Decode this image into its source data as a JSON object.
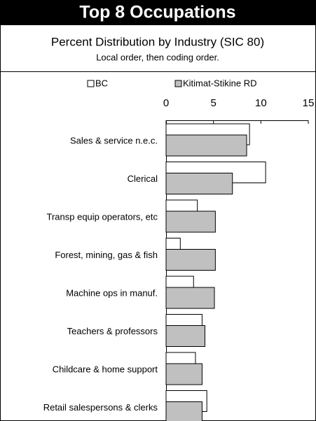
{
  "chart_data": {
    "type": "bar",
    "orientation": "horizontal",
    "title": "Top 8 Occupations",
    "subtitle": "Percent Distribution by Industry (SIC 80)",
    "note": "Local order, then coding order.",
    "categories": [
      "Sales & service  n.e.c.",
      "Clerical",
      "Transp equip operators, etc",
      "Forest, mining, gas & fish",
      "Machine ops in manuf.",
      "Teachers & professors",
      "Childcare & home support",
      "Retail salespersons & clerks"
    ],
    "series": [
      {
        "name": "BC",
        "color": "#ffffff",
        "values": [
          8.8,
          10.5,
          3.3,
          1.5,
          2.9,
          3.8,
          3.1,
          4.3
        ]
      },
      {
        "name": "Kitimat-Stikine RD",
        "color": "#c0c0c0",
        "values": [
          8.5,
          7.0,
          5.2,
          5.2,
          5.1,
          4.1,
          3.8,
          3.8
        ]
      }
    ],
    "xlim": [
      0,
      15
    ],
    "xticks": [
      0,
      5,
      10,
      15
    ]
  }
}
